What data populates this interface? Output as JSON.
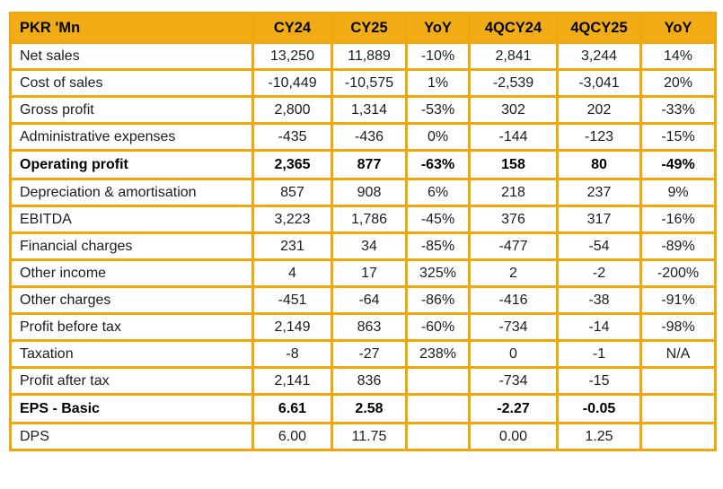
{
  "chart_data": {
    "type": "table",
    "title": "Financial results table, PKR millions",
    "columns": [
      "PKR 'Mn",
      "CY24",
      "CY25",
      "YoY",
      "4QCY24",
      "4QCY25",
      "YoY"
    ],
    "rows": [
      {
        "label": "Net sales",
        "values": [
          "13,250",
          "11,889",
          "-10%",
          "2,841",
          "3,244",
          "14%"
        ],
        "bold": false
      },
      {
        "label": "Cost of sales",
        "values": [
          "-10,449",
          "-10,575",
          "1%",
          "-2,539",
          "-3,041",
          "20%"
        ],
        "bold": false
      },
      {
        "label": "Gross profit",
        "values": [
          "2,800",
          "1,314",
          "-53%",
          "302",
          "202",
          "-33%"
        ],
        "bold": false
      },
      {
        "label": "Administrative expenses",
        "values": [
          "-435",
          "-436",
          "0%",
          "-144",
          "-123",
          "-15%"
        ],
        "bold": false
      },
      {
        "label": "Operating profit",
        "values": [
          "2,365",
          "877",
          "-63%",
          "158",
          "80",
          "-49%"
        ],
        "bold": true
      },
      {
        "label": "Depreciation & amortisation",
        "values": [
          "857",
          "908",
          "6%",
          "218",
          "237",
          "9%"
        ],
        "bold": false
      },
      {
        "label": "EBITDA",
        "values": [
          "3,223",
          "1,786",
          "-45%",
          "376",
          "317",
          "-16%"
        ],
        "bold": false
      },
      {
        "label": "Financial charges",
        "values": [
          "231",
          "34",
          "-85%",
          "-477",
          "-54",
          "-89%"
        ],
        "bold": false
      },
      {
        "label": "Other income",
        "values": [
          "4",
          "17",
          "325%",
          "2",
          "-2",
          "-200%"
        ],
        "bold": false
      },
      {
        "label": "Other charges",
        "values": [
          "-451",
          "-64",
          "-86%",
          "-416",
          "-38",
          "-91%"
        ],
        "bold": false
      },
      {
        "label": "Profit before tax",
        "values": [
          "2,149",
          "863",
          "-60%",
          "-734",
          "-14",
          "-98%"
        ],
        "bold": false
      },
      {
        "label": "Taxation",
        "values": [
          "-8",
          "-27",
          "238%",
          "0",
          "-1",
          "N/A"
        ],
        "bold": false
      },
      {
        "label": "Profit after tax",
        "values": [
          "2,141",
          "836",
          "",
          "-734",
          "-15",
          ""
        ],
        "bold": false
      },
      {
        "label": "EPS - Basic",
        "values": [
          "6.61",
          "2.58",
          "",
          "-2.27",
          "-0.05",
          ""
        ],
        "bold": true
      },
      {
        "label": "DPS",
        "values": [
          "6.00",
          "11.75",
          "",
          "0.00",
          "1.25",
          ""
        ],
        "bold": false
      }
    ],
    "layout_hints": {
      "header_background": "#F2AC15",
      "grid_border_color": "#EFA70D",
      "grid": "on",
      "value_alignment": "center",
      "label_alignment": "left"
    }
  },
  "colors": {
    "gold": "#F2AC15",
    "border": "#EFA70D",
    "text": "#1c1c1c"
  }
}
